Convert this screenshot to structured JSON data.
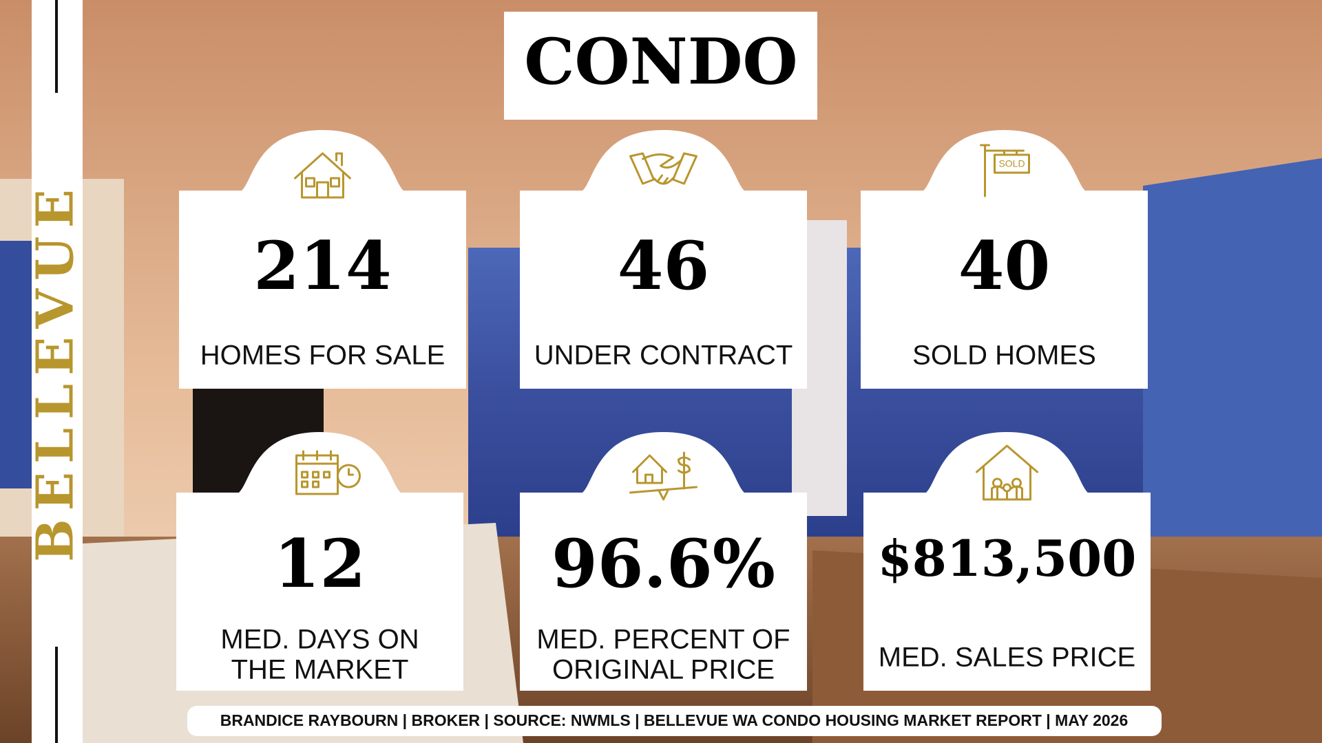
{
  "side_label": "BELLEVUE",
  "title": "CONDO",
  "cards": [
    {
      "value": "214",
      "label": [
        "HOMES FOR SALE"
      ]
    },
    {
      "value": "46",
      "label": [
        "UNDER CONTRACT"
      ]
    },
    {
      "value": "40",
      "label": [
        "SOLD HOMES"
      ]
    },
    {
      "value": "12",
      "label": [
        "MED. DAYS ON",
        "THE MARKET"
      ]
    },
    {
      "value": "96.6%",
      "label": [
        "MED. PERCENT OF",
        "ORIGINAL PRICE"
      ]
    },
    {
      "value": "$813,500",
      "label": [
        "MED. SALES PRICE"
      ]
    }
  ],
  "sold_sign": "SOLD",
  "footer": "BRANDICE RAYBOURN | BROKER | SOURCE: NWMLS | BELLEVUE WA CONDO HOUSING MARKET REPORT | MAY 2026"
}
